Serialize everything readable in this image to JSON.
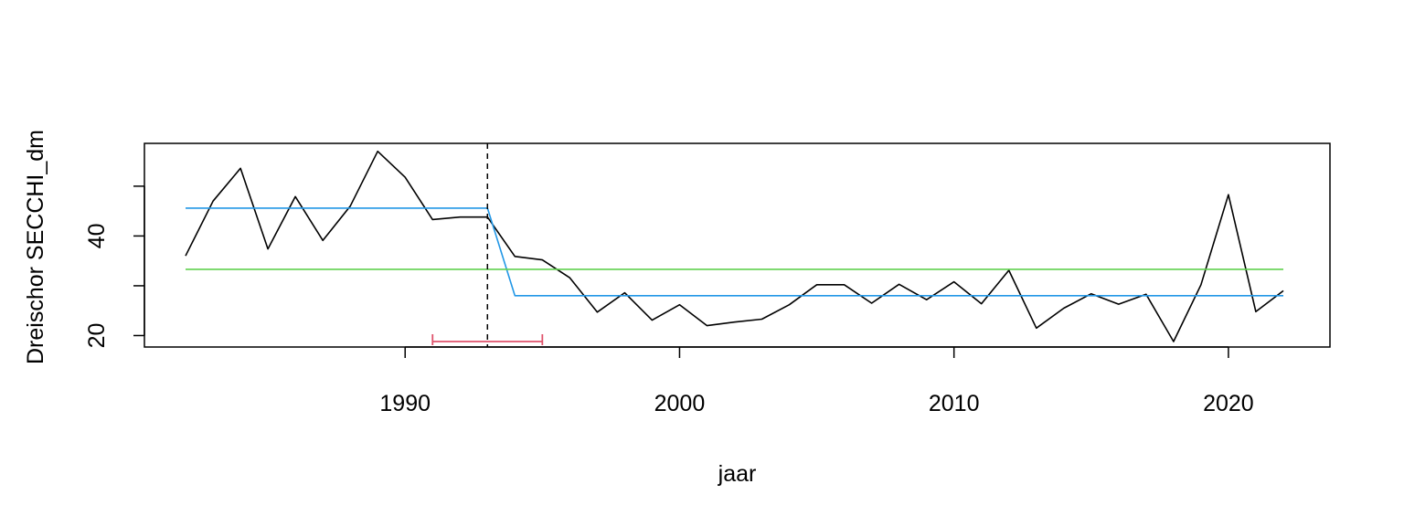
{
  "chart_data": {
    "type": "line",
    "title": "",
    "xlabel": "jaar",
    "ylabel": "Dreischor SECCHI_dm",
    "xlim": [
      1980.5,
      2023.7
    ],
    "ylim": [
      17.7,
      58.6
    ],
    "xticks": [
      1990,
      2000,
      2010,
      2020
    ],
    "xtick_labels": [
      "1990",
      "2000",
      "2010",
      "2020"
    ],
    "yticks": [
      20,
      30,
      40,
      50
    ],
    "ytick_labels": [
      "20",
      "",
      "40",
      ""
    ],
    "grid": false,
    "legend": "none",
    "series": [
      {
        "color": "#000000",
        "x": [
          1982,
          1983,
          1984,
          1985,
          1986,
          1987,
          1988,
          1989,
          1990,
          1991,
          1992,
          1993,
          1994,
          1995,
          1996,
          1997,
          1998,
          1999,
          2000,
          2001,
          2002,
          2003,
          2004,
          2005,
          2006,
          2007,
          2008,
          2009,
          2010,
          2011,
          2012,
          2013,
          2014,
          2015,
          2016,
          2017,
          2018,
          2019,
          2020,
          2021,
          2022
        ],
        "y": [
          36.0,
          47.0,
          53.6,
          37.4,
          47.9,
          39.1,
          46.0,
          57.0,
          51.8,
          43.3,
          43.8,
          43.8,
          35.9,
          35.2,
          31.6,
          24.7,
          28.6,
          23.1,
          26.2,
          22.0,
          22.7,
          23.3,
          26.2,
          30.2,
          30.2,
          26.5,
          30.3,
          27.2,
          30.8,
          26.4,
          33.1,
          21.5,
          25.5,
          28.4,
          26.3,
          28.3,
          18.8,
          30.2,
          48.3,
          24.8,
          29.0
        ]
      },
      {
        "color": "#2297E6",
        "x": [
          1982,
          1993,
          1994,
          2022
        ],
        "y": [
          45.6,
          45.6,
          28.0,
          28.0
        ]
      },
      {
        "color": "#61D04F",
        "x": [
          1982,
          2022
        ],
        "y": [
          33.3,
          33.3
        ]
      }
    ],
    "annotations": {
      "changepoint_x": 1993,
      "interval": {
        "x": [
          1991,
          1995
        ],
        "y": 18.8,
        "color": "#DF536B"
      }
    }
  }
}
